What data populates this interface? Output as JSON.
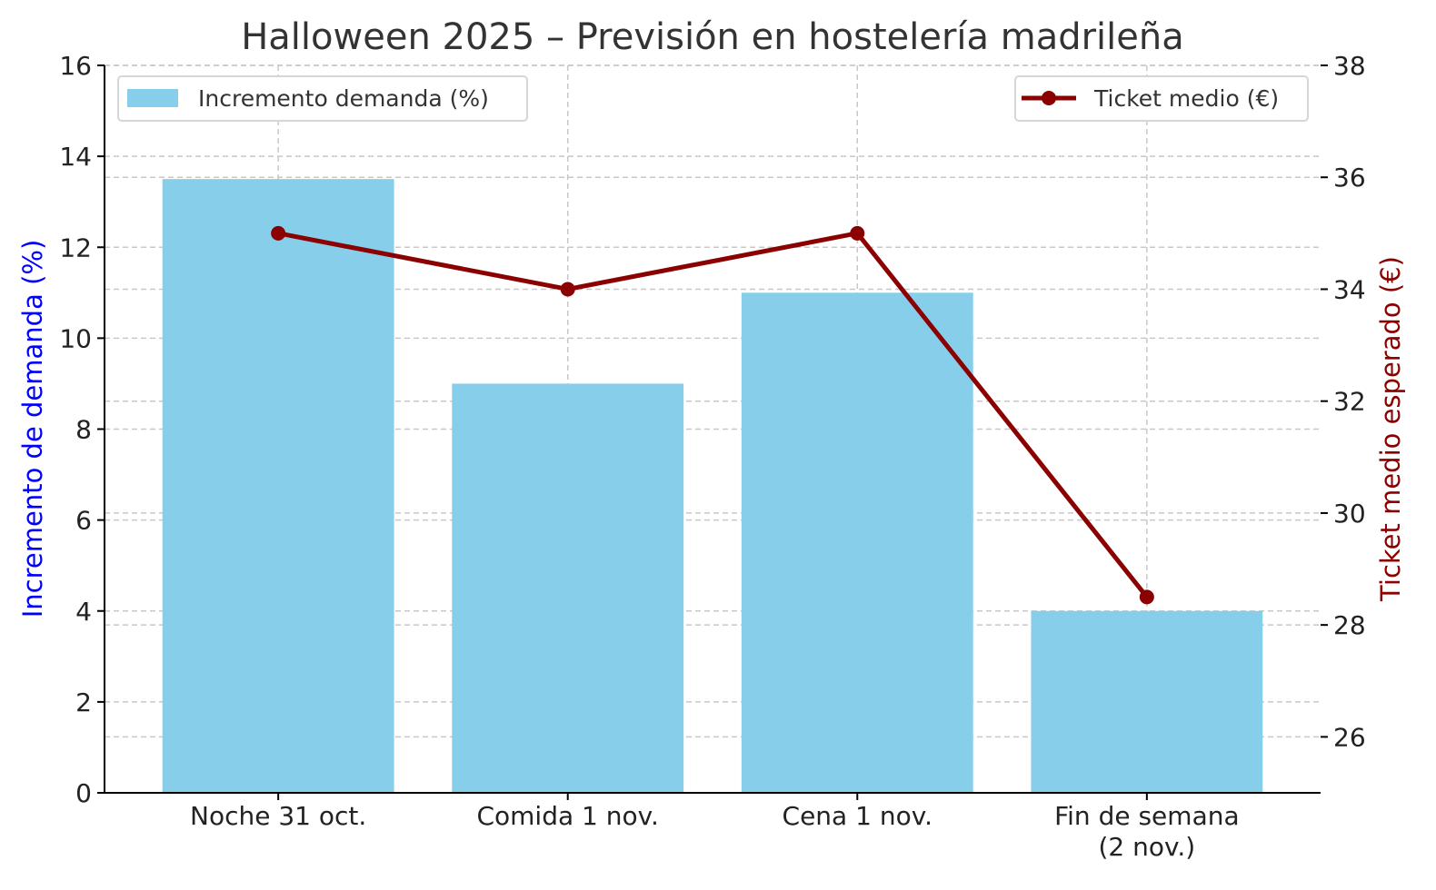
{
  "chart_data": {
    "type": "bar+line",
    "title": "Halloween 2025 – Previsión en hostelería madrileña",
    "categories": [
      "Noche 31 oct.",
      "Comida 1 nov.",
      "Cena 1 nov.",
      "Fin de semana\n(2 nov.)"
    ],
    "series": [
      {
        "name": "Incremento demanda (%)",
        "type": "bar",
        "axis": "left",
        "values": [
          13.5,
          9,
          11,
          4
        ],
        "color": "#87CEEB"
      },
      {
        "name": "Ticket medio (€)",
        "type": "line",
        "axis": "right",
        "values": [
          35,
          34,
          35,
          28.5
        ],
        "color": "#8B0000",
        "marker": "circle"
      }
    ],
    "ylabel": "Incremento de demanda (%)",
    "ylabel_color": "#0000FF",
    "y2label": "Ticket medio esperado (€)",
    "y2label_color": "#8B0000",
    "ylim": [
      0,
      16
    ],
    "yticks": [
      0,
      2,
      4,
      6,
      8,
      10,
      12,
      14,
      16
    ],
    "y2lim": [
      25,
      38
    ],
    "y2ticks": [
      26,
      28,
      30,
      32,
      34,
      36,
      38
    ],
    "grid": true,
    "legend_bar_placement": "top-left",
    "legend_line_placement": "top-right"
  }
}
